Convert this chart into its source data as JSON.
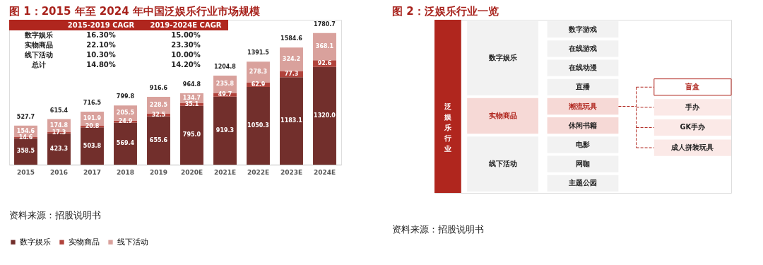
{
  "chart_data": [
    {
      "type": "bar",
      "title": "图 1：2015 年至 2024 年中国泛娱乐行业市场规模",
      "categories": [
        "2015",
        "2016",
        "2017",
        "2018",
        "2019",
        "2020E",
        "2021E",
        "2022E",
        "2023E",
        "2024E"
      ],
      "stacked": true,
      "legend": "bottom",
      "grid": false,
      "series": [
        {
          "name": "数字娱乐",
          "color": "#722f2c",
          "values": [
            358.5,
            423.3,
            503.8,
            569.4,
            655.6,
            795.0,
            919.3,
            1050.3,
            1183.1,
            1320.0
          ],
          "value_labels": [
            "358.5",
            "423.3",
            "503.8",
            "569.4",
            "655.6",
            "795.0",
            "919.3",
            "1050.3",
            "1183.1",
            "1320.0"
          ]
        },
        {
          "name": "实物商品",
          "color": "#b0433c",
          "values": [
            14.6,
            17.3,
            20.8,
            24.9,
            32.5,
            35.1,
            49.7,
            62.9,
            77.3,
            92.6
          ],
          "value_labels": [
            "14.6",
            "17.3",
            "20.8",
            "24.9",
            "32.5",
            "35.1",
            "49.7",
            "62.9",
            "77.3",
            "92.6"
          ]
        },
        {
          "name": "线下活动",
          "color": "#d9a19c",
          "values": [
            154.6,
            174.8,
            191.9,
            205.5,
            228.5,
            134.7,
            235.8,
            278.3,
            324.2,
            368.1
          ],
          "value_labels": [
            "154.6",
            "174.8",
            "191.9",
            "205.5",
            "228.5",
            "134.7",
            "235.8",
            "278.3",
            "324.2",
            "368.1"
          ]
        }
      ],
      "totals": [
        "527.7",
        "615.4",
        "716.5",
        "799.8",
        "916.6",
        "964.8",
        "1204.8",
        "1391.5",
        "1584.6",
        "1780.7"
      ],
      "annotations": [
        "2015-2019 CAGR",
        "2019-2024E CAGR",
        "数字娱乐",
        "16.30%",
        "15.00%",
        "实物商品",
        "22.10%",
        "23.30%",
        "线下活动",
        "10.30%",
        "10.00%",
        "总计",
        "14.80%",
        "14.20%",
        "资料来源：招股说明书"
      ]
    },
    {
      "type": "other",
      "title": "图 2：泛娱乐行业一览",
      "annotations": [
        "泛娱乐行业",
        "数字娱乐",
        "实物商品",
        "线下活动",
        "数字游戏",
        "在线游戏",
        "在线动漫",
        "直播",
        "潮流玩具",
        "休闲书籍",
        "电影",
        "网咖",
        "主题公园",
        "盲盒",
        "手办",
        "GK手办",
        "成人拼装玩具",
        "资料来源：招股说明书"
      ]
    }
  ]
}
